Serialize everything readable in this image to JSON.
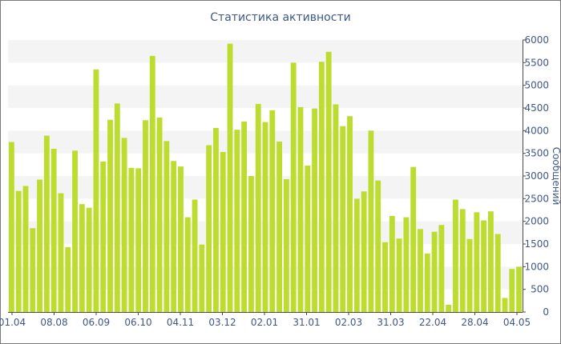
{
  "chart_data": {
    "type": "bar",
    "title": "Статистика активности",
    "ylabel": "Сообщений",
    "xlabel": "",
    "ylim": [
      0,
      6000
    ],
    "yticks": [
      0,
      500,
      1000,
      1500,
      2000,
      2500,
      3000,
      3500,
      4000,
      4500,
      5000,
      5500,
      6000
    ],
    "x_tick_labels": [
      "01.04",
      "08.08",
      "06.09",
      "06.10",
      "04.11",
      "03.12",
      "02.01",
      "31.01",
      "02.03",
      "31.03",
      "22.04",
      "28.04",
      "04.05"
    ],
    "grid": "horizontal bands",
    "bar_color": "#bcdd30",
    "values": [
      3750,
      2670,
      2780,
      1850,
      2920,
      3890,
      3600,
      2620,
      1430,
      3560,
      2380,
      2300,
      5350,
      3320,
      4240,
      4600,
      3840,
      3180,
      3170,
      4230,
      5650,
      4290,
      3770,
      3330,
      3210,
      2090,
      2480,
      1490,
      3680,
      4060,
      3530,
      5920,
      4020,
      4200,
      3000,
      4590,
      4190,
      4450,
      3760,
      2930,
      5500,
      4520,
      3230,
      4490,
      5520,
      5740,
      4580,
      4100,
      4320,
      2500,
      2660,
      4000,
      2900,
      1540,
      2120,
      1620,
      2090,
      3200,
      1830,
      1290,
      1770,
      1920,
      160,
      2480,
      2270,
      1610,
      2200,
      2020,
      2220,
      1720,
      310,
      950,
      1000
    ]
  }
}
